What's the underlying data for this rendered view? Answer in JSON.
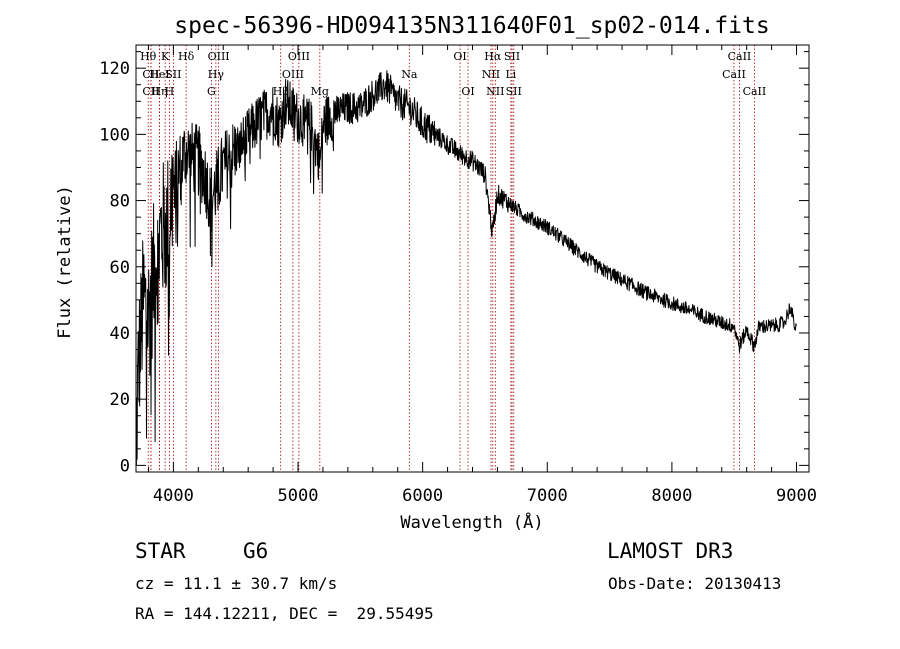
{
  "chart_data": {
    "type": "line",
    "title": "spec-56396-HD094135N311640F01_sp02-014.fits",
    "xlabel": "Wavelength (Å)",
    "ylabel": "Flux (relative)",
    "xlim": [
      3700,
      9100
    ],
    "ylim": [
      -2,
      127
    ],
    "xticks": [
      4000,
      5000,
      6000,
      7000,
      8000,
      9000
    ],
    "yticks": [
      0,
      20,
      40,
      60,
      80,
      100,
      120
    ],
    "spectrum_anchors": {
      "x": [
        3700,
        3720,
        3760,
        3800,
        3850,
        3900,
        3950,
        4000,
        4050,
        4100,
        4150,
        4200,
        4250,
        4300,
        4350,
        4400,
        4500,
        4600,
        4700,
        4800,
        4850,
        4900,
        5000,
        5100,
        5180,
        5200,
        5300,
        5400,
        5500,
        5600,
        5700,
        5800,
        5900,
        6000,
        6100,
        6200,
        6300,
        6400,
        6500,
        6560,
        6600,
        6700,
        6800,
        7000,
        7200,
        7400,
        7600,
        7800,
        8000,
        8200,
        8400,
        8500,
        8540,
        8600,
        8660,
        8700,
        8800,
        8900,
        8950,
        9000
      ],
      "y": [
        5,
        30,
        50,
        45,
        60,
        70,
        72,
        85,
        90,
        95,
        93,
        92,
        88,
        80,
        85,
        90,
        95,
        100,
        105,
        108,
        103,
        110,
        105,
        103,
        92,
        103,
        107,
        108,
        108,
        112,
        115,
        110,
        108,
        103,
        100,
        97,
        94,
        92,
        88,
        70,
        82,
        79,
        76,
        72,
        66,
        60,
        56,
        52,
        49,
        46,
        43,
        42,
        36,
        41,
        36,
        42,
        42,
        43,
        48,
        40
      ]
    },
    "spectral_lines": [
      {
        "label": "Hθ",
        "wavelength": 3798,
        "row": 0
      },
      {
        "label": "CII",
        "wavelength": 3820,
        "row": 1
      },
      {
        "label": "CII",
        "wavelength": 3820,
        "row": 2
      },
      {
        "label": "K",
        "wavelength": 3934,
        "row": 0
      },
      {
        "label": "HeI",
        "wavelength": 3889,
        "row": 1
      },
      {
        "label": "Hη",
        "wavelength": 3889,
        "row": 2
      },
      {
        "label": "SII",
        "wavelength": 4000,
        "row": 1
      },
      {
        "label": "H",
        "wavelength": 3968,
        "row": 2
      },
      {
        "label": "Hδ",
        "wavelength": 4102,
        "row": 0
      },
      {
        "label": "OIII",
        "wavelength": 4363,
        "row": 0
      },
      {
        "label": "Hγ",
        "wavelength": 4341,
        "row": 1
      },
      {
        "label": "G",
        "wavelength": 4305,
        "row": 2
      },
      {
        "label": "OIII",
        "wavelength": 5007,
        "row": 0
      },
      {
        "label": "OIII",
        "wavelength": 4959,
        "row": 1
      },
      {
        "label": "Hβ",
        "wavelength": 4861,
        "row": 2
      },
      {
        "label": "Mg",
        "wavelength": 5175,
        "row": 2
      },
      {
        "label": "Na",
        "wavelength": 5893,
        "row": 1
      },
      {
        "label": "OI",
        "wavelength": 6300,
        "row": 0
      },
      {
        "label": "OI",
        "wavelength": 6364,
        "row": 2
      },
      {
        "label": "Hα",
        "wavelength": 6563,
        "row": 0
      },
      {
        "label": "NII",
        "wavelength": 6548,
        "row": 1
      },
      {
        "label": "NII",
        "wavelength": 6583,
        "row": 2
      },
      {
        "label": "SII",
        "wavelength": 6717,
        "row": 0
      },
      {
        "label": "Li",
        "wavelength": 6708,
        "row": 1
      },
      {
        "label": "SII",
        "wavelength": 6731,
        "row": 2
      },
      {
        "label": "CaII",
        "wavelength": 8542,
        "row": 0
      },
      {
        "label": "CaII",
        "wavelength": 8498,
        "row": 1
      },
      {
        "label": "CaII",
        "wavelength": 8662,
        "row": 2
      }
    ]
  },
  "info": {
    "object_class": "STAR",
    "subclass": "G6",
    "survey": "LAMOST DR3",
    "cz_line": "cz = 11.1 ± 30.7 km/s",
    "obs_date_line": "Obs-Date: 20130413",
    "coords_line": "RA = 144.12211, DEC =  29.55495"
  },
  "colors": {
    "spectrum": "#000000",
    "line_marker": "#aa0000",
    "axes": "#000000",
    "background": "#ffffff"
  }
}
